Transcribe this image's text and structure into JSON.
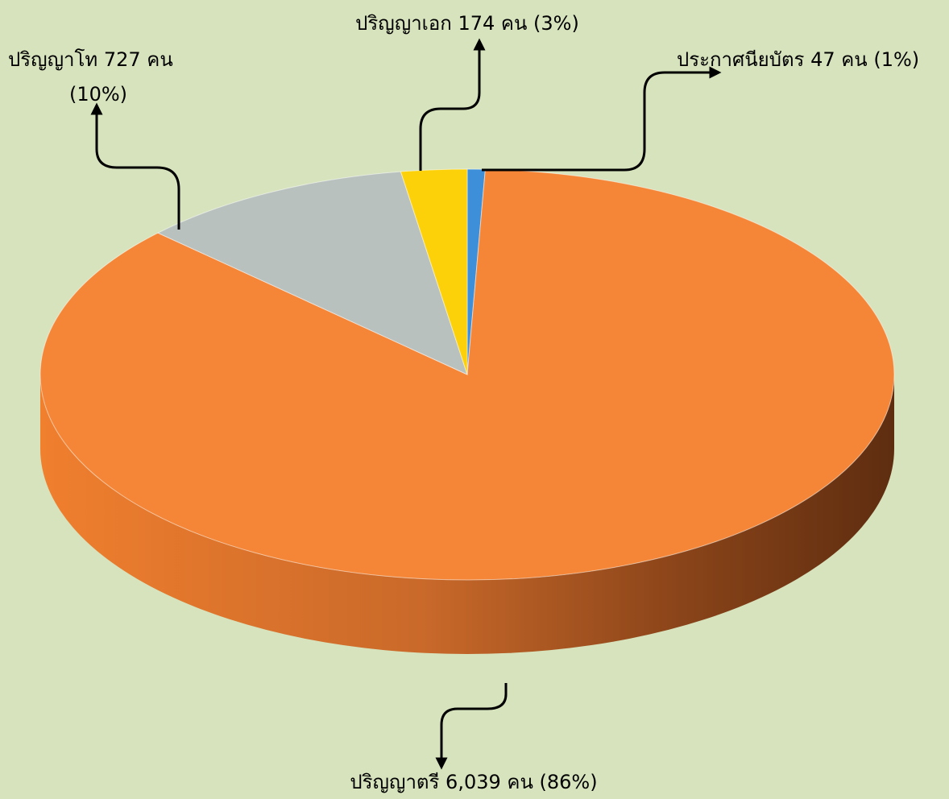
{
  "chart_data": {
    "type": "pie3d",
    "categories": [
      "ประกาศนียบัตร",
      "ปริญญาตรี",
      "ปริญญาโท",
      "ปริญญาเอก"
    ],
    "values": [
      47,
      6039,
      727,
      174
    ],
    "value_labels": [
      "47 คน",
      "6,039 คน",
      "727 คน",
      "174 คน"
    ],
    "percent_labels": [
      "(1%)",
      "(86%)",
      "(10%)",
      "(3%)"
    ],
    "colors": [
      "#3d8fd9",
      "#f58638",
      "#b9c1bf",
      "#fdd10a"
    ]
  }
}
